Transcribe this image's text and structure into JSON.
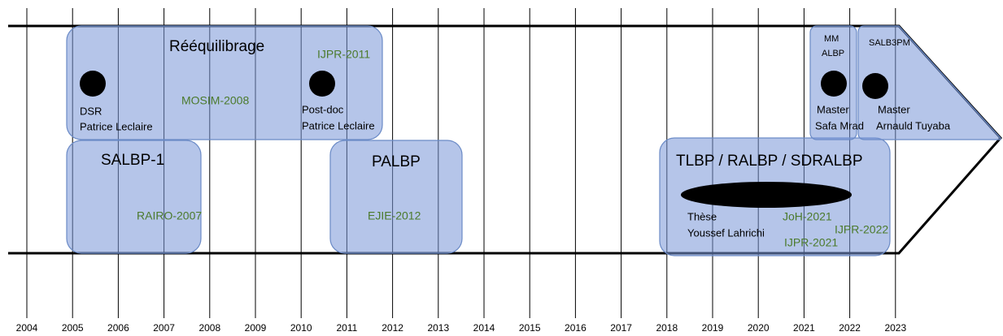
{
  "years": [
    "2004",
    "2005",
    "2006",
    "2007",
    "2008",
    "2009",
    "2010",
    "2011",
    "2012",
    "2013",
    "2014",
    "2015",
    "2016",
    "2017",
    "2018",
    "2019",
    "2020",
    "2021",
    "2022",
    "2023"
  ],
  "boxes": [
    {
      "title": "Rééquilibrage",
      "items": [
        "DSR",
        "Patrice Leclaire",
        "Post-doc",
        "Patrice Leclaire",
        "MOSIM-2008",
        "IJPR-2011"
      ]
    },
    {
      "title": "SALBP-1",
      "items": [
        "RAIRO-2007"
      ]
    },
    {
      "title": "PALBP",
      "items": [
        "EJIE-2012"
      ]
    },
    {
      "title": "TLBP / RALBP / SDRALBP",
      "items": [
        "Thèse",
        "Youssef Lahrichi",
        "JoH-2021",
        "IJPR-2022",
        "IJPR-2021"
      ]
    },
    {
      "title": "MM ALBP",
      "items": [
        "Master",
        "Safa Mrad"
      ]
    },
    {
      "title": "SALB3PM",
      "items": [
        "Master",
        "Arnauld Tuyaba"
      ]
    }
  ]
}
